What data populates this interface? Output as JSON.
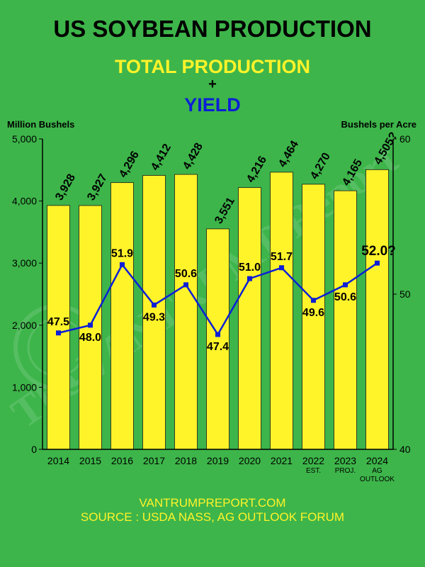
{
  "header": {
    "title": "US SOYBEAN PRODUCTION",
    "subtitle_1": "TOTAL PRODUCTION",
    "plus": "+",
    "subtitle_2": "YIELD"
  },
  "footer": {
    "site": "VANTRUMPREPORT.COM",
    "source": "SOURCE : USDA NASS, AG OUTLOOK FORUM"
  },
  "watermark": {
    "text": "The VANTRUMP Report"
  },
  "colors": {
    "background": "#3db54a",
    "bar_fill": "#fff32a",
    "line": "#0b1fd6",
    "text": "#000000"
  },
  "chart_data": {
    "type": "bar",
    "categories": [
      "2014",
      "2015",
      "2016",
      "2017",
      "2018",
      "2019",
      "2020",
      "2021",
      "2022",
      "2023",
      "2024"
    ],
    "category_sublabels": [
      "",
      "",
      "",
      "",
      "",
      "",
      "",
      "",
      "EST.",
      "PROJ.",
      "AG\nOUTLOOK"
    ],
    "series": [
      {
        "type": "bar",
        "axis": "left",
        "values": [
          3928,
          3927,
          4296,
          4412,
          4428,
          3551,
          4216,
          4464,
          4270,
          4165,
          4505
        ],
        "labels": [
          "3,928",
          "3,927",
          "4,296",
          "4,412",
          "4,428",
          "3,551",
          "4,216",
          "4,464",
          "4,270",
          "4,165",
          "4,505?"
        ]
      },
      {
        "type": "line",
        "axis": "right",
        "values": [
          47.5,
          48.0,
          51.9,
          49.3,
          50.6,
          47.4,
          51.0,
          51.7,
          49.6,
          50.6,
          52.0
        ],
        "labels": [
          "47.5",
          "48.0",
          "51.9",
          "49.3",
          "50.6",
          "47.4",
          "51.0",
          "51.7",
          "49.6",
          "50.6",
          "52.0?"
        ]
      }
    ],
    "ylabel_left": "Million Bushels",
    "ylabel_right": "Bushels per Acre",
    "ylim_left": [
      0,
      5000
    ],
    "ylim_right": [
      40,
      60
    ],
    "yticks_left": [
      0,
      1000,
      2000,
      3000,
      4000,
      5000
    ],
    "yticks_left_labels": [
      "0",
      "1,000",
      "2,000",
      "3,000",
      "4,000",
      "5,000"
    ],
    "yticks_right": [
      40,
      50,
      60
    ],
    "yticks_right_labels": [
      "40",
      "50",
      "60"
    ],
    "grid": false,
    "legend": "none"
  }
}
